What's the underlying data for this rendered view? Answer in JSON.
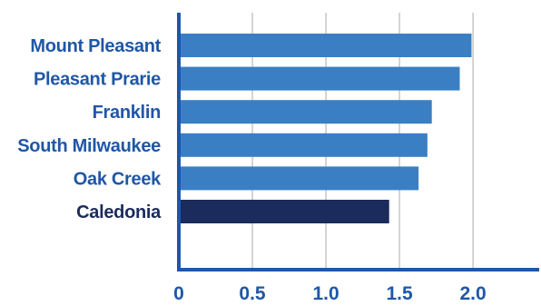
{
  "chart_data": {
    "type": "bar",
    "orientation": "horizontal",
    "title": "",
    "xlabel": "",
    "ylabel": "",
    "categories": [
      "Mount Pleasant",
      "Pleasant Prarie",
      "Franklin",
      "South Milwaukee",
      "Oak Creek",
      "Caledonia"
    ],
    "values": [
      1.99,
      1.91,
      1.72,
      1.69,
      1.63,
      1.43
    ],
    "xlim": [
      0,
      2.45
    ],
    "xticks": [
      0,
      0.5,
      1.0,
      1.5,
      2.0
    ],
    "xtick_labels": [
      "0",
      "0.5",
      "1.0",
      "1.5",
      "2.0"
    ],
    "grid": "vertical",
    "legend": "none",
    "colors": {
      "bar": "#3a7fc4",
      "highlight_bar": "#1b2b5c",
      "axis": "#1f57a6",
      "label": "#1f57a6",
      "highlight_label": "#1b2b5c",
      "grid": "#aaaaaa"
    },
    "highlight_index": 5
  }
}
